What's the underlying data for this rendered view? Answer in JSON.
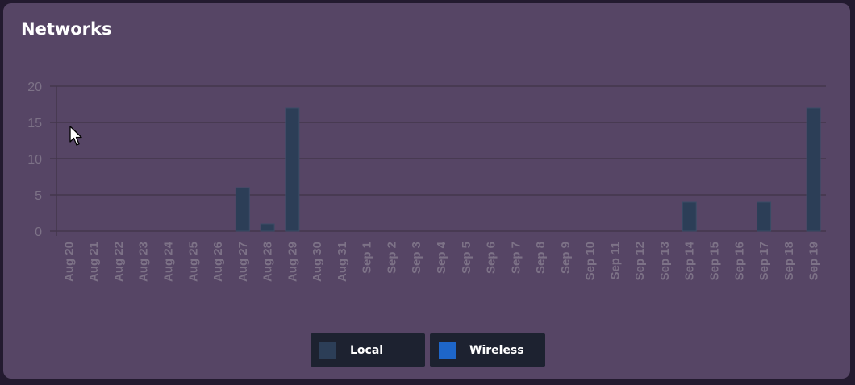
{
  "card": {
    "title": "Networks"
  },
  "colors": {
    "local": "#2c3e57",
    "wireless": "#1e66c9",
    "grid": "#43374d",
    "tick_text": "#7d7287"
  },
  "legend": [
    {
      "key": "local",
      "label": "Local"
    },
    {
      "key": "wireless",
      "label": "Wireless"
    }
  ],
  "chart_data": {
    "type": "bar",
    "categories": [
      "Aug 20",
      "Aug 21",
      "Aug 22",
      "Aug 23",
      "Aug 24",
      "Aug 25",
      "Aug 26",
      "Aug 27",
      "Aug 28",
      "Aug 29",
      "Aug 30",
      "Aug 31",
      "Sep 1",
      "Sep 2",
      "Sep 3",
      "Sep 4",
      "Sep 5",
      "Sep 6",
      "Sep 7",
      "Sep 8",
      "Sep 9",
      "Sep 10",
      "Sep 11",
      "Sep 12",
      "Sep 13",
      "Sep 14",
      "Sep 15",
      "Sep 16",
      "Sep 17",
      "Sep 18",
      "Sep 19"
    ],
    "series": [
      {
        "name": "Local",
        "values": [
          0,
          0,
          0,
          0,
          0,
          0,
          0,
          6,
          1,
          17,
          0,
          0,
          0,
          0,
          0,
          0,
          0,
          0,
          0,
          0,
          0,
          0,
          0,
          0,
          0,
          4,
          0,
          0,
          4,
          0,
          17
        ]
      },
      {
        "name": "Wireless",
        "values": [
          0,
          0,
          0,
          0,
          0,
          0,
          0,
          0,
          0,
          0,
          0,
          0,
          0,
          0,
          0,
          0,
          0,
          0,
          0,
          0,
          0,
          0,
          0,
          0,
          0,
          0,
          0,
          0,
          0,
          0,
          0
        ]
      }
    ],
    "yticks": [
      0,
      5,
      10,
      15,
      20
    ],
    "ylim": [
      0,
      20
    ],
    "grid": true,
    "stacked": true,
    "legend_position": "bottom"
  }
}
